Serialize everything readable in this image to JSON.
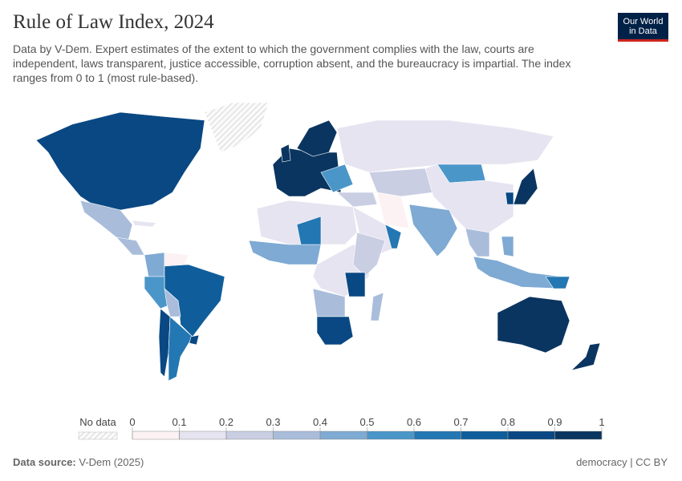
{
  "chart_data": {
    "type": "choropleth",
    "title": "Rule of Law Index, 2024",
    "subtitle": "Data by V-Dem. Expert estimates of the extent to which the government complies with the law, courts are independent, laws transparent, justice accessible, corruption absent, and the bureaucracy is impartial. The index ranges from 0 to 1 (most rule-based).",
    "logo": [
      "Our World",
      "in Data"
    ],
    "no_data_label": "No data",
    "ticks": [
      0,
      0.1,
      0.2,
      0.3,
      0.4,
      0.5,
      0.6,
      0.7,
      0.8,
      0.9,
      1
    ],
    "colors": [
      "#fcf1f3",
      "#e6e4f0",
      "#c9cee3",
      "#a9bddb",
      "#7eaad3",
      "#4b96c8",
      "#2377b2",
      "#0f5e9b",
      "#094883",
      "#0a3560"
    ],
    "values": [
      0.88,
      0.32,
      0.3,
      0.15,
      0.4,
      0.03,
      0.78,
      0.55,
      0.35,
      0.85,
      0.62,
      0.85,
      0.9,
      0.95,
      0.92,
      0.55,
      0.12,
      0.2,
      0.55,
      0.15,
      0.25,
      0.08,
      0.12,
      0.6,
      0.45,
      0.3,
      0.4,
      0.45,
      0.95,
      0.85,
      0.15,
      0.4,
      0.65,
      0.15,
      0.2,
      0.8,
      0.35,
      0.82,
      0.3,
      0.95,
      0.95,
      0.6
    ],
    "source_label": "Data source:",
    "source": "V-Dem (2025)",
    "license": "democracy | CC BY"
  }
}
